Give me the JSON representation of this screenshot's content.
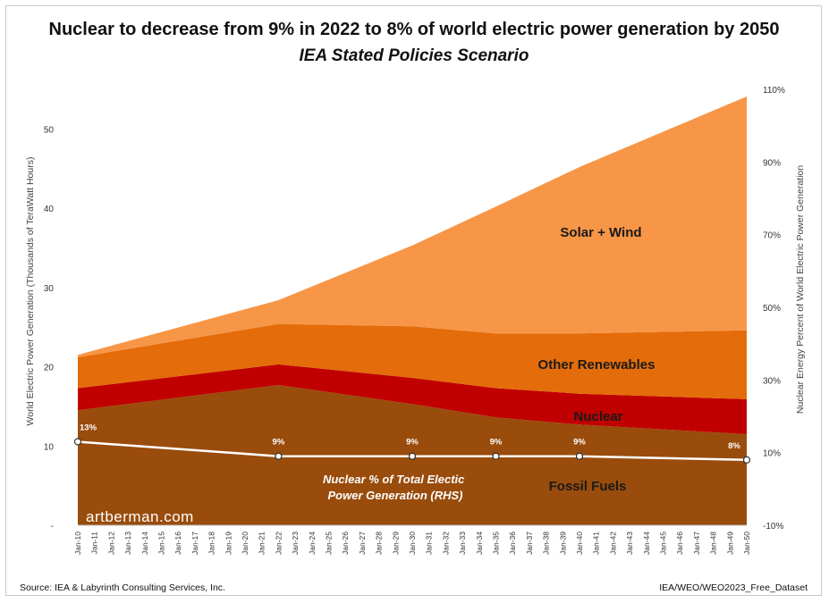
{
  "title": "Nuclear to decrease from 9% in 2022 to 8% of world electric power generation by 2050",
  "subtitle": "IEA Stated Policies Scenario",
  "watermark": "artberman.com",
  "footer": {
    "source": "Source:  IEA & Labyrinth Consulting Services, Inc.",
    "dataset": "IEA/WEO/WEO2023_Free_Dataset"
  },
  "colors": {
    "fossil": "#994c0c",
    "nuclear": "#c00000",
    "other_renewables": "#e46c0a",
    "solar_wind": "#f79646",
    "nuclear_pct_line": "#ffffff"
  },
  "chart_data": {
    "type": "area",
    "stacked": true,
    "ylabel": "World Electric Power Generation (Thousands of TeraWatt Hours)",
    "y2label": "Nuclear Energy Percent of World Electric Power Generation",
    "ylim": [
      0,
      55
    ],
    "y2lim": [
      -10,
      110
    ],
    "yticks": [
      "-",
      "10",
      "20",
      "30",
      "40",
      "50"
    ],
    "y2ticks": [
      "-10%",
      "10%",
      "30%",
      "50%",
      "70%",
      "90%",
      "110%"
    ],
    "x": [
      2010,
      2022,
      2030,
      2035,
      2040,
      2050
    ],
    "xtick_labels": [
      "Jan-10",
      "Jan-11",
      "Jan-12",
      "Jan-13",
      "Jan-14",
      "Jan-15",
      "Jan-16",
      "Jan-17",
      "Jan-18",
      "Jan-19",
      "Jan-20",
      "Jan-21",
      "Jan-22",
      "Jan-23",
      "Jan-24",
      "Jan-25",
      "Jan-26",
      "Jan-27",
      "Jan-28",
      "Jan-29",
      "Jan-30",
      "Jan-31",
      "Jan-32",
      "Jan-33",
      "Jan-34",
      "Jan-35",
      "Jan-36",
      "Jan-37",
      "Jan-38",
      "Jan-39",
      "Jan-40",
      "Jan-41",
      "Jan-42",
      "Jan-43",
      "Jan-44",
      "Jan-45",
      "Jan-46",
      "Jan-47",
      "Jan-48",
      "Jan-49",
      "Jan-50"
    ],
    "series": [
      {
        "name": "Fossil Fuels",
        "values": [
          14.5,
          17.7,
          15.3,
          13.6,
          12.7,
          11.5
        ]
      },
      {
        "name": "Nuclear",
        "values": [
          2.8,
          2.6,
          3.3,
          3.7,
          3.9,
          4.4
        ]
      },
      {
        "name": "Other Renewables",
        "values": [
          3.9,
          5.1,
          6.5,
          6.9,
          7.6,
          8.7
        ]
      },
      {
        "name": "Solar + Wind",
        "values": [
          0.3,
          3.0,
          10.2,
          16.0,
          21.0,
          29.5
        ]
      }
    ],
    "nuclear_pct": {
      "name": "Nuclear % of Total Electic Power Generation (RHS)",
      "values": [
        13,
        9,
        9,
        9,
        9,
        8
      ],
      "labels": [
        "13%",
        "9%",
        "9%",
        "9%",
        "9%",
        "8%"
      ]
    }
  }
}
